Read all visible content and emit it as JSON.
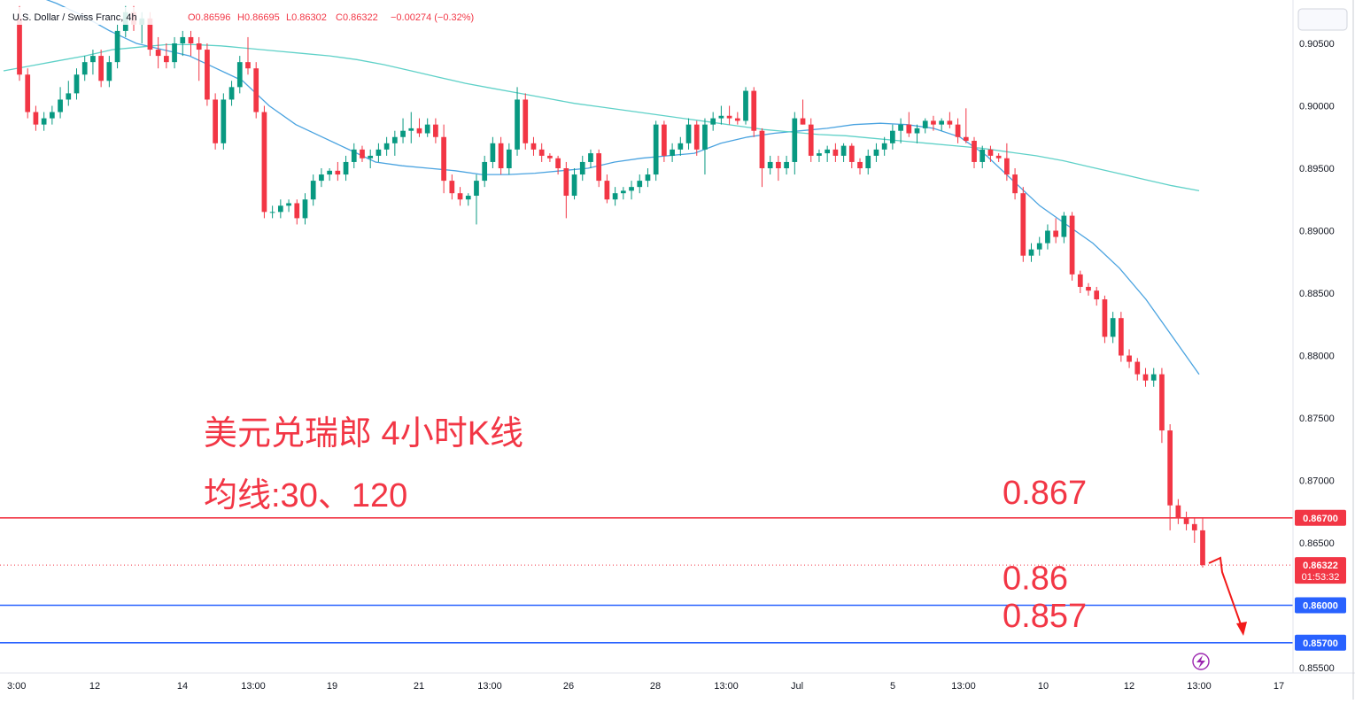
{
  "header": {
    "symbol": "U.S. Dollar / Swiss Franc, 4h",
    "open": "O0.86596",
    "high": "H0.86695",
    "low": "L0.86302",
    "close": "C0.86322",
    "change": "−0.00274 (−0.32%)"
  },
  "annotation": {
    "title": "美元兑瑞郎 4小时K线",
    "ma_note": "均线:30、120"
  },
  "levels": [
    {
      "value": 0.867,
      "label": "0.867",
      "tag": "0.86700",
      "color": "#f23645"
    },
    {
      "value": 0.86,
      "label": "0.86",
      "tag": "0.86000",
      "color": "#2962ff"
    },
    {
      "value": 0.857,
      "label": "0.857",
      "tag": "0.85700",
      "color": "#2962ff"
    }
  ],
  "last_price": {
    "tag": "0.86322",
    "countdown": "01:53:32",
    "value": 0.86322
  },
  "colors": {
    "up": "#089981",
    "down": "#f23645",
    "ma30": "#4aa3e0",
    "ma120": "#5fd1c8",
    "arrow": "#f21a1a"
  },
  "icons": {
    "lightning": "lightning-icon"
  },
  "chart_data": {
    "type": "candlestick",
    "title": "",
    "y_ticks": [
      "0.90500",
      "0.90000",
      "0.89500",
      "0.89000",
      "0.88500",
      "0.88000",
      "0.87500",
      "0.87000",
      "0.86500",
      "0.85500"
    ],
    "x_ticks": [
      "3:00",
      "12",
      "14",
      "13:00",
      "19",
      "21",
      "13:00",
      "26",
      "28",
      "13:00",
      "Jul",
      "5",
      "13:00",
      "10",
      "12",
      "13:00",
      "17"
    ],
    "ylim": [
      0.8545,
      0.9075
    ],
    "candles": [
      {
        "o": 0.907,
        "h": 0.908,
        "l": 0.902,
        "c": 0.9025
      },
      {
        "o": 0.9025,
        "h": 0.903,
        "l": 0.899,
        "c": 0.8995
      },
      {
        "o": 0.8995,
        "h": 0.9,
        "l": 0.898,
        "c": 0.8985
      },
      {
        "o": 0.8985,
        "h": 0.8995,
        "l": 0.898,
        "c": 0.899
      },
      {
        "o": 0.899,
        "h": 0.9,
        "l": 0.8985,
        "c": 0.8995
      },
      {
        "o": 0.8995,
        "h": 0.9015,
        "l": 0.899,
        "c": 0.9005
      },
      {
        "o": 0.9005,
        "h": 0.902,
        "l": 0.9,
        "c": 0.901
      },
      {
        "o": 0.901,
        "h": 0.903,
        "l": 0.9005,
        "c": 0.9025
      },
      {
        "o": 0.9025,
        "h": 0.904,
        "l": 0.902,
        "c": 0.9035
      },
      {
        "o": 0.9035,
        "h": 0.9045,
        "l": 0.9025,
        "c": 0.904
      },
      {
        "o": 0.904,
        "h": 0.9045,
        "l": 0.9015,
        "c": 0.902
      },
      {
        "o": 0.902,
        "h": 0.904,
        "l": 0.9015,
        "c": 0.9035
      },
      {
        "o": 0.9035,
        "h": 0.9065,
        "l": 0.903,
        "c": 0.906
      },
      {
        "o": 0.906,
        "h": 0.908,
        "l": 0.9055,
        "c": 0.9075
      },
      {
        "o": 0.9075,
        "h": 0.908,
        "l": 0.906,
        "c": 0.9065
      },
      {
        "o": 0.9065,
        "h": 0.9075,
        "l": 0.905,
        "c": 0.907
      },
      {
        "o": 0.907,
        "h": 0.9075,
        "l": 0.904,
        "c": 0.9045
      },
      {
        "o": 0.9045,
        "h": 0.9055,
        "l": 0.903,
        "c": 0.904
      },
      {
        "o": 0.904,
        "h": 0.905,
        "l": 0.903,
        "c": 0.9035
      },
      {
        "o": 0.9035,
        "h": 0.9055,
        "l": 0.903,
        "c": 0.905
      },
      {
        "o": 0.905,
        "h": 0.906,
        "l": 0.904,
        "c": 0.9055
      },
      {
        "o": 0.9055,
        "h": 0.906,
        "l": 0.904,
        "c": 0.905
      },
      {
        "o": 0.905,
        "h": 0.9055,
        "l": 0.902,
        "c": 0.9045
      },
      {
        "o": 0.9045,
        "h": 0.905,
        "l": 0.9,
        "c": 0.9005
      },
      {
        "o": 0.9005,
        "h": 0.901,
        "l": 0.8965,
        "c": 0.897
      },
      {
        "o": 0.897,
        "h": 0.901,
        "l": 0.8965,
        "c": 0.9005
      },
      {
        "o": 0.9005,
        "h": 0.902,
        "l": 0.9,
        "c": 0.9015
      },
      {
        "o": 0.9015,
        "h": 0.904,
        "l": 0.901,
        "c": 0.9035
      },
      {
        "o": 0.9035,
        "h": 0.9055,
        "l": 0.9025,
        "c": 0.903
      },
      {
        "o": 0.903,
        "h": 0.9035,
        "l": 0.899,
        "c": 0.8995
      },
      {
        "o": 0.8995,
        "h": 0.9,
        "l": 0.891,
        "c": 0.8915
      },
      {
        "o": 0.8915,
        "h": 0.892,
        "l": 0.891,
        "c": 0.8915
      },
      {
        "o": 0.8915,
        "h": 0.8925,
        "l": 0.891,
        "c": 0.892
      },
      {
        "o": 0.892,
        "h": 0.8925,
        "l": 0.8915,
        "c": 0.8922
      },
      {
        "o": 0.8922,
        "h": 0.8925,
        "l": 0.8905,
        "c": 0.891
      },
      {
        "o": 0.891,
        "h": 0.893,
        "l": 0.8905,
        "c": 0.8925
      },
      {
        "o": 0.8925,
        "h": 0.8945,
        "l": 0.892,
        "c": 0.894
      },
      {
        "o": 0.894,
        "h": 0.895,
        "l": 0.8935,
        "c": 0.8945
      },
      {
        "o": 0.8945,
        "h": 0.895,
        "l": 0.894,
        "c": 0.8948
      },
      {
        "o": 0.8948,
        "h": 0.8955,
        "l": 0.894,
        "c": 0.8945
      },
      {
        "o": 0.8945,
        "h": 0.896,
        "l": 0.894,
        "c": 0.8955
      },
      {
        "o": 0.8955,
        "h": 0.897,
        "l": 0.895,
        "c": 0.8965
      },
      {
        "o": 0.8965,
        "h": 0.8968,
        "l": 0.8955,
        "c": 0.8958
      },
      {
        "o": 0.8958,
        "h": 0.8965,
        "l": 0.895,
        "c": 0.896
      },
      {
        "o": 0.896,
        "h": 0.897,
        "l": 0.8955,
        "c": 0.8965
      },
      {
        "o": 0.8965,
        "h": 0.8975,
        "l": 0.896,
        "c": 0.897
      },
      {
        "o": 0.897,
        "h": 0.898,
        "l": 0.896,
        "c": 0.8975
      },
      {
        "o": 0.8975,
        "h": 0.899,
        "l": 0.897,
        "c": 0.898
      },
      {
        "o": 0.898,
        "h": 0.8995,
        "l": 0.897,
        "c": 0.8982
      },
      {
        "o": 0.8982,
        "h": 0.899,
        "l": 0.8975,
        "c": 0.8978
      },
      {
        "o": 0.8978,
        "h": 0.899,
        "l": 0.8975,
        "c": 0.8985
      },
      {
        "o": 0.8985,
        "h": 0.899,
        "l": 0.897,
        "c": 0.8975
      },
      {
        "o": 0.8975,
        "h": 0.8985,
        "l": 0.893,
        "c": 0.894
      },
      {
        "o": 0.894,
        "h": 0.8945,
        "l": 0.8925,
        "c": 0.893
      },
      {
        "o": 0.893,
        "h": 0.8935,
        "l": 0.892,
        "c": 0.8925
      },
      {
        "o": 0.8925,
        "h": 0.893,
        "l": 0.892,
        "c": 0.8928
      },
      {
        "o": 0.8928,
        "h": 0.8945,
        "l": 0.8905,
        "c": 0.894
      },
      {
        "o": 0.894,
        "h": 0.896,
        "l": 0.8935,
        "c": 0.8955
      },
      {
        "o": 0.8955,
        "h": 0.8975,
        "l": 0.895,
        "c": 0.897
      },
      {
        "o": 0.897,
        "h": 0.8975,
        "l": 0.8945,
        "c": 0.895
      },
      {
        "o": 0.895,
        "h": 0.897,
        "l": 0.8945,
        "c": 0.8965
      },
      {
        "o": 0.8965,
        "h": 0.9015,
        "l": 0.896,
        "c": 0.9005
      },
      {
        "o": 0.9005,
        "h": 0.901,
        "l": 0.8965,
        "c": 0.897
      },
      {
        "o": 0.897,
        "h": 0.8975,
        "l": 0.896,
        "c": 0.8965
      },
      {
        "o": 0.8965,
        "h": 0.897,
        "l": 0.8955,
        "c": 0.896
      },
      {
        "o": 0.896,
        "h": 0.8962,
        "l": 0.8955,
        "c": 0.8958
      },
      {
        "o": 0.8958,
        "h": 0.896,
        "l": 0.8945,
        "c": 0.895
      },
      {
        "o": 0.895,
        "h": 0.8955,
        "l": 0.891,
        "c": 0.8928
      },
      {
        "o": 0.8928,
        "h": 0.895,
        "l": 0.8925,
        "c": 0.8945
      },
      {
        "o": 0.8945,
        "h": 0.896,
        "l": 0.894,
        "c": 0.8955
      },
      {
        "o": 0.8955,
        "h": 0.8965,
        "l": 0.895,
        "c": 0.8962
      },
      {
        "o": 0.8962,
        "h": 0.8965,
        "l": 0.8935,
        "c": 0.894
      },
      {
        "o": 0.894,
        "h": 0.8945,
        "l": 0.8922,
        "c": 0.8925
      },
      {
        "o": 0.8925,
        "h": 0.8935,
        "l": 0.892,
        "c": 0.893
      },
      {
        "o": 0.893,
        "h": 0.8935,
        "l": 0.8925,
        "c": 0.8932
      },
      {
        "o": 0.8932,
        "h": 0.894,
        "l": 0.8925,
        "c": 0.8935
      },
      {
        "o": 0.8935,
        "h": 0.8945,
        "l": 0.893,
        "c": 0.894
      },
      {
        "o": 0.894,
        "h": 0.895,
        "l": 0.8935,
        "c": 0.8945
      },
      {
        "o": 0.8945,
        "h": 0.8988,
        "l": 0.894,
        "c": 0.8985
      },
      {
        "o": 0.8985,
        "h": 0.8988,
        "l": 0.8955,
        "c": 0.896
      },
      {
        "o": 0.896,
        "h": 0.897,
        "l": 0.8955,
        "c": 0.8965
      },
      {
        "o": 0.8965,
        "h": 0.8975,
        "l": 0.896,
        "c": 0.897
      },
      {
        "o": 0.897,
        "h": 0.899,
        "l": 0.8965,
        "c": 0.8985
      },
      {
        "o": 0.8985,
        "h": 0.8988,
        "l": 0.896,
        "c": 0.8965
      },
      {
        "o": 0.8965,
        "h": 0.899,
        "l": 0.8945,
        "c": 0.8985
      },
      {
        "o": 0.8985,
        "h": 0.8995,
        "l": 0.898,
        "c": 0.899
      },
      {
        "o": 0.899,
        "h": 0.9,
        "l": 0.8985,
        "c": 0.8992
      },
      {
        "o": 0.8992,
        "h": 0.9,
        "l": 0.8985,
        "c": 0.899
      },
      {
        "o": 0.899,
        "h": 0.8995,
        "l": 0.8985,
        "c": 0.8988
      },
      {
        "o": 0.8988,
        "h": 0.9015,
        "l": 0.8985,
        "c": 0.9012
      },
      {
        "o": 0.9012,
        "h": 0.9015,
        "l": 0.8975,
        "c": 0.898
      },
      {
        "o": 0.898,
        "h": 0.8982,
        "l": 0.8935,
        "c": 0.895
      },
      {
        "o": 0.895,
        "h": 0.896,
        "l": 0.8945,
        "c": 0.8955
      },
      {
        "o": 0.8955,
        "h": 0.896,
        "l": 0.894,
        "c": 0.895
      },
      {
        "o": 0.895,
        "h": 0.896,
        "l": 0.8945,
        "c": 0.8955
      },
      {
        "o": 0.8955,
        "h": 0.8995,
        "l": 0.8945,
        "c": 0.899
      },
      {
        "o": 0.899,
        "h": 0.9005,
        "l": 0.8985,
        "c": 0.8985
      },
      {
        "o": 0.8985,
        "h": 0.899,
        "l": 0.8955,
        "c": 0.896
      },
      {
        "o": 0.896,
        "h": 0.8965,
        "l": 0.8955,
        "c": 0.8962
      },
      {
        "o": 0.8962,
        "h": 0.8968,
        "l": 0.8955,
        "c": 0.8965
      },
      {
        "o": 0.8965,
        "h": 0.897,
        "l": 0.8955,
        "c": 0.896
      },
      {
        "o": 0.896,
        "h": 0.897,
        "l": 0.8955,
        "c": 0.8968
      },
      {
        "o": 0.8968,
        "h": 0.897,
        "l": 0.895,
        "c": 0.8955
      },
      {
        "o": 0.8955,
        "h": 0.8958,
        "l": 0.8945,
        "c": 0.895
      },
      {
        "o": 0.895,
        "h": 0.8965,
        "l": 0.8945,
        "c": 0.896
      },
      {
        "o": 0.896,
        "h": 0.897,
        "l": 0.8955,
        "c": 0.8965
      },
      {
        "o": 0.8965,
        "h": 0.8975,
        "l": 0.896,
        "c": 0.897
      },
      {
        "o": 0.897,
        "h": 0.8985,
        "l": 0.8965,
        "c": 0.898
      },
      {
        "o": 0.898,
        "h": 0.899,
        "l": 0.897,
        "c": 0.8985
      },
      {
        "o": 0.8985,
        "h": 0.8995,
        "l": 0.8975,
        "c": 0.8978
      },
      {
        "o": 0.8978,
        "h": 0.8985,
        "l": 0.897,
        "c": 0.8982
      },
      {
        "o": 0.8982,
        "h": 0.899,
        "l": 0.8978,
        "c": 0.8988
      },
      {
        "o": 0.8988,
        "h": 0.8992,
        "l": 0.898,
        "c": 0.8985
      },
      {
        "o": 0.8985,
        "h": 0.899,
        "l": 0.898,
        "c": 0.8988
      },
      {
        "o": 0.8988,
        "h": 0.8995,
        "l": 0.8982,
        "c": 0.8985
      },
      {
        "o": 0.8985,
        "h": 0.899,
        "l": 0.897,
        "c": 0.8975
      },
      {
        "o": 0.8975,
        "h": 0.8998,
        "l": 0.897,
        "c": 0.8972
      },
      {
        "o": 0.8972,
        "h": 0.8975,
        "l": 0.895,
        "c": 0.8955
      },
      {
        "o": 0.8955,
        "h": 0.8968,
        "l": 0.895,
        "c": 0.8965
      },
      {
        "o": 0.8965,
        "h": 0.8968,
        "l": 0.8955,
        "c": 0.896
      },
      {
        "o": 0.896,
        "h": 0.8962,
        "l": 0.8955,
        "c": 0.8958
      },
      {
        "o": 0.8958,
        "h": 0.897,
        "l": 0.894,
        "c": 0.8945
      },
      {
        "o": 0.8945,
        "h": 0.895,
        "l": 0.8925,
        "c": 0.893
      },
      {
        "o": 0.893,
        "h": 0.8935,
        "l": 0.8875,
        "c": 0.888
      },
      {
        "o": 0.888,
        "h": 0.889,
        "l": 0.8875,
        "c": 0.8885
      },
      {
        "o": 0.8885,
        "h": 0.8895,
        "l": 0.888,
        "c": 0.889
      },
      {
        "o": 0.889,
        "h": 0.8905,
        "l": 0.8885,
        "c": 0.89
      },
      {
        "o": 0.89,
        "h": 0.891,
        "l": 0.889,
        "c": 0.8895
      },
      {
        "o": 0.8895,
        "h": 0.8915,
        "l": 0.889,
        "c": 0.8912
      },
      {
        "o": 0.8912,
        "h": 0.8915,
        "l": 0.886,
        "c": 0.8865
      },
      {
        "o": 0.8865,
        "h": 0.8868,
        "l": 0.885,
        "c": 0.8855
      },
      {
        "o": 0.8855,
        "h": 0.8858,
        "l": 0.8848,
        "c": 0.8852
      },
      {
        "o": 0.8852,
        "h": 0.8855,
        "l": 0.884,
        "c": 0.8845
      },
      {
        "o": 0.8845,
        "h": 0.8848,
        "l": 0.881,
        "c": 0.8815
      },
      {
        "o": 0.8815,
        "h": 0.8835,
        "l": 0.881,
        "c": 0.883
      },
      {
        "o": 0.883,
        "h": 0.8835,
        "l": 0.8795,
        "c": 0.88
      },
      {
        "o": 0.88,
        "h": 0.8805,
        "l": 0.879,
        "c": 0.8795
      },
      {
        "o": 0.8795,
        "h": 0.8798,
        "l": 0.878,
        "c": 0.8785
      },
      {
        "o": 0.8785,
        "h": 0.879,
        "l": 0.8775,
        "c": 0.878
      },
      {
        "o": 0.878,
        "h": 0.879,
        "l": 0.8775,
        "c": 0.8785
      },
      {
        "o": 0.8785,
        "h": 0.879,
        "l": 0.873,
        "c": 0.874
      },
      {
        "o": 0.874,
        "h": 0.8745,
        "l": 0.866,
        "c": 0.868
      },
      {
        "o": 0.868,
        "h": 0.8685,
        "l": 0.8665,
        "c": 0.867
      },
      {
        "o": 0.867,
        "h": 0.8675,
        "l": 0.866,
        "c": 0.8665
      },
      {
        "o": 0.8665,
        "h": 0.867,
        "l": 0.865,
        "c": 0.866
      },
      {
        "o": 0.866,
        "h": 0.86695,
        "l": 0.86302,
        "c": 0.86322
      }
    ],
    "series": [
      {
        "name": "30",
        "values": [
          0.9098,
          0.909,
          0.9082,
          0.9072,
          0.906,
          0.905,
          0.9045,
          0.904,
          0.903,
          0.902,
          0.9,
          0.8985,
          0.8975,
          0.8965,
          0.8955,
          0.8952,
          0.895,
          0.8948,
          0.8945,
          0.8945,
          0.8946,
          0.8948,
          0.895,
          0.8955,
          0.8958,
          0.896,
          0.8962,
          0.897,
          0.8975,
          0.8978,
          0.898,
          0.8982,
          0.8985,
          0.8986,
          0.8985,
          0.8982,
          0.8975,
          0.896,
          0.894,
          0.892,
          0.8905,
          0.889,
          0.887,
          0.8845,
          0.8815,
          0.8785
        ]
      },
      {
        "name": "120",
        "values": [
          0.9028,
          0.9032,
          0.9036,
          0.904,
          0.9045,
          0.9047,
          0.9049,
          0.9049,
          0.9048,
          0.9046,
          0.9044,
          0.9042,
          0.904,
          0.9037,
          0.9033,
          0.9028,
          0.9023,
          0.9018,
          0.9014,
          0.901,
          0.9006,
          0.9002,
          0.8999,
          0.8996,
          0.8993,
          0.899,
          0.8987,
          0.8984,
          0.8981,
          0.8979,
          0.8977,
          0.8976,
          0.8974,
          0.8972,
          0.897,
          0.8968,
          0.8966,
          0.8963,
          0.896,
          0.8956,
          0.8951,
          0.8946,
          0.8941,
          0.8936,
          0.8932
        ]
      }
    ]
  }
}
